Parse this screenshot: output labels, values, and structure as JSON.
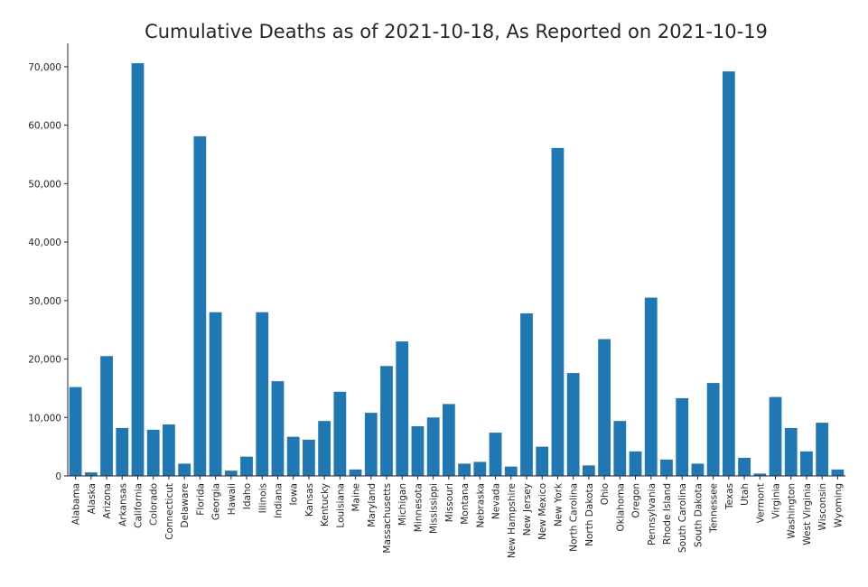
{
  "chart_data": {
    "type": "bar",
    "title": "Cumulative Deaths as of 2021-10-18, As Reported on 2021-10-19",
    "xlabel": "",
    "ylabel": "",
    "ylim": [
      0,
      74000
    ],
    "grid": false,
    "bar_color": "#1f77b4",
    "y_ticks": [
      0,
      10000,
      20000,
      30000,
      40000,
      50000,
      60000,
      70000
    ],
    "y_tick_labels": [
      "0",
      "10,000",
      "20,000",
      "30,000",
      "40,000",
      "50,000",
      "60,000",
      "70,000"
    ],
    "categories": [
      "Alabama",
      "Alaska",
      "Arizona",
      "Arkansas",
      "California",
      "Colorado",
      "Connecticut",
      "Delaware",
      "Florida",
      "Georgia",
      "Hawaii",
      "Idaho",
      "Illinois",
      "Indiana",
      "Iowa",
      "Kansas",
      "Kentucky",
      "Louisiana",
      "Maine",
      "Maryland",
      "Massachusetts",
      "Michigan",
      "Minnesota",
      "Mississippi",
      "Missouri",
      "Montana",
      "Nebraska",
      "Nevada",
      "New Hampshire",
      "New Jersey",
      "New Mexico",
      "New York",
      "North Carolina",
      "North Dakota",
      "Ohio",
      "Oklahoma",
      "Oregon",
      "Pennsylvania",
      "Rhode Island",
      "South Carolina",
      "South Dakota",
      "Tennessee",
      "Texas",
      "Utah",
      "Vermont",
      "Virginia",
      "Washington",
      "West Virginia",
      "Wisconsin",
      "Wyoming"
    ],
    "values": [
      15200,
      600,
      20500,
      8200,
      70600,
      7900,
      8800,
      2100,
      58100,
      28000,
      900,
      3300,
      28000,
      16200,
      6700,
      6200,
      9400,
      14400,
      1100,
      10800,
      18800,
      23000,
      8500,
      10000,
      12300,
      2100,
      2400,
      7400,
      1600,
      27800,
      5000,
      56100,
      17600,
      1800,
      23400,
      9400,
      4200,
      30500,
      2800,
      13300,
      2100,
      15900,
      69200,
      3100,
      400,
      13500,
      8200,
      4200,
      9100,
      1100
    ]
  }
}
